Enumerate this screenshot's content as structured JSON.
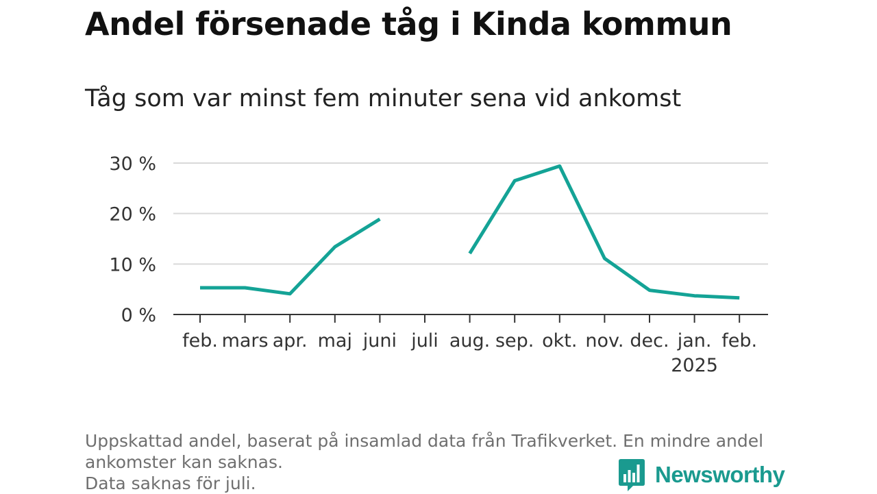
{
  "title": "Andel försenade tåg i Kinda kommun",
  "subtitle": "Tåg som var minst fem minuter sena vid ankomst",
  "footer": {
    "line1": "Uppskattad andel, baserat på insamlad data från Trafikverket. En mindre andel",
    "line2": "ankomster kan saknas.",
    "line3": "Data saknas för juli."
  },
  "brand": {
    "name": "Newsworthy",
    "icon": "newsworthy-logo-icon",
    "color": "#1a9a8f"
  },
  "chart_data": {
    "type": "line",
    "categories": [
      "feb.",
      "mars",
      "apr.",
      "maj",
      "juni",
      "juli",
      "aug.",
      "sep.",
      "okt.",
      "nov.",
      "dec.",
      "jan.",
      "feb."
    ],
    "category_sublabels": [
      "",
      "",
      "",
      "",
      "",
      "",
      "",
      "",
      "",
      "",
      "",
      "2025",
      ""
    ],
    "series": [
      {
        "values": [
          5.3,
          5.3,
          4.1,
          13.4,
          18.9,
          null,
          12.1,
          26.5,
          29.4,
          11.1,
          4.8,
          3.7,
          3.3
        ],
        "color": "#14a396"
      }
    ],
    "y_ticks": [
      0,
      10,
      20,
      30
    ],
    "y_tick_labels": [
      "0 %",
      "10 %",
      "20 %",
      "30 %"
    ],
    "ylim": [
      0,
      30
    ],
    "grid": true,
    "xlabel": "",
    "ylabel": ""
  }
}
